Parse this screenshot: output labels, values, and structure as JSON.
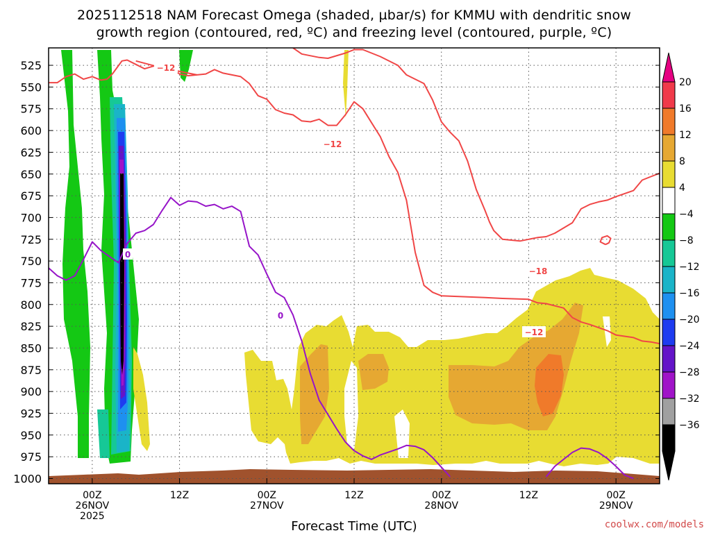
{
  "chart_data": {
    "type": "contour-time-height",
    "title_line1": "2025112518 NAM Forecast Omega (shaded, µbar/s) for KMMU with dendritic snow",
    "title_line2": "growth region (contoured, red, ºC) and freezing level (contoured, purple, ºC)",
    "xlabel": "Forecast Time (UTC)",
    "credit": "coolwx.com/models",
    "y_axis": {
      "unit": "hPa",
      "ticks": [
        525,
        550,
        575,
        600,
        625,
        650,
        675,
        700,
        725,
        750,
        775,
        800,
        825,
        850,
        875,
        900,
        925,
        950,
        975,
        1000
      ],
      "range": [
        505,
        1006
      ],
      "grid": true
    },
    "x_axis": {
      "range_hours": [
        -5,
        65
      ],
      "ticks": [
        {
          "hour": 0,
          "lines": [
            "00Z",
            "26NOV",
            "2025"
          ]
        },
        {
          "hour": 10,
          "lines": [
            "12Z"
          ]
        },
        {
          "hour": 20,
          "lines": [
            "00Z",
            "27NOV"
          ]
        },
        {
          "hour": 30,
          "lines": [
            "12Z"
          ]
        },
        {
          "hour": 40,
          "lines": [
            "00Z",
            "28NOV"
          ]
        },
        {
          "hour": 50,
          "lines": [
            "12Z"
          ]
        },
        {
          "hour": 60,
          "lines": [
            "00Z",
            "29NOV"
          ]
        }
      ],
      "grid": true
    },
    "colorbar": {
      "labels": [
        "20",
        "16",
        "12",
        "8",
        "4",
        "−4",
        "−8",
        "−12",
        "−16",
        "−20",
        "−24",
        "−28",
        "−32",
        "−36"
      ],
      "colors": [
        "#f03a4a",
        "#f07a2a",
        "#e6a832",
        "#e8dc32",
        "#ffffff",
        "#14c814",
        "#16c896",
        "#1ab4c8",
        "#1e90f0",
        "#1e3cf0",
        "#6414c8",
        "#a014c8",
        "#a0a0a0",
        "#000000"
      ],
      "top_arrow_color": "#e60082",
      "bottom_arrow_color": "#000000"
    },
    "contour_labels": {
      "dgz_a": "−12",
      "dgz_b": "−12",
      "dgz_c": "−18",
      "dgz_d": "−12",
      "freeze_a": "0",
      "freeze_b": "0"
    },
    "series": [
      {
        "key": "dgz_top",
        "color": "#f04646",
        "points": [
          [
            -5,
            545
          ],
          [
            -4,
            545
          ],
          [
            -3,
            538
          ],
          [
            -2,
            535
          ],
          [
            -1,
            541
          ],
          [
            0,
            538
          ],
          [
            1,
            542
          ],
          [
            1.7,
            541
          ],
          [
            2.3,
            535
          ],
          [
            3.4,
            520
          ],
          [
            4,
            519
          ],
          [
            5,
            524
          ],
          [
            6,
            529
          ],
          [
            7,
            526
          ],
          [
            8,
            525
          ],
          [
            9,
            527
          ],
          [
            10,
            535
          ],
          [
            11,
            537
          ],
          [
            12,
            536
          ],
          [
            13,
            535
          ],
          [
            14,
            530
          ],
          [
            15,
            534
          ],
          [
            17,
            538
          ],
          [
            18,
            546
          ],
          [
            19,
            560
          ],
          [
            20,
            564
          ],
          [
            21,
            576
          ],
          [
            22,
            580
          ],
          [
            23,
            582
          ],
          [
            24,
            589
          ],
          [
            25,
            590
          ],
          [
            26,
            587
          ],
          [
            27,
            594
          ],
          [
            28,
            594
          ],
          [
            29,
            582
          ],
          [
            30,
            567
          ],
          [
            31,
            575
          ],
          [
            32,
            591
          ],
          [
            33,
            607
          ],
          [
            34,
            630
          ],
          [
            35,
            648
          ],
          [
            36,
            680
          ],
          [
            37,
            740
          ],
          [
            38,
            778
          ],
          [
            39,
            786
          ],
          [
            40,
            790
          ],
          [
            45,
            792
          ],
          [
            47,
            793
          ],
          [
            50,
            794
          ],
          [
            51,
            798
          ],
          [
            52,
            799
          ],
          [
            54,
            804
          ],
          [
            55,
            815
          ],
          [
            56,
            820
          ],
          [
            57,
            823
          ],
          [
            59,
            830
          ],
          [
            60,
            835
          ],
          [
            62,
            838
          ],
          [
            63,
            842
          ],
          [
            64,
            843
          ],
          [
            65,
            845
          ]
        ]
      },
      {
        "key": "dgz_top2",
        "color": "#f04646",
        "points": [
          [
            5,
            520
          ],
          [
            8,
            528
          ],
          [
            12,
            536
          ]
        ]
      },
      {
        "key": "dgz_upper",
        "color": "#f04646",
        "points": [
          [
            23,
            505
          ],
          [
            24,
            512
          ],
          [
            26,
            516
          ],
          [
            27,
            517
          ],
          [
            29,
            511
          ],
          [
            30,
            507
          ],
          [
            31,
            507
          ],
          [
            33,
            515
          ],
          [
            35,
            525
          ],
          [
            36,
            536
          ],
          [
            38,
            546
          ],
          [
            39,
            565
          ],
          [
            40,
            590
          ],
          [
            41,
            602
          ],
          [
            42,
            612
          ],
          [
            43,
            635
          ],
          [
            44,
            668
          ],
          [
            45,
            692
          ],
          [
            45.5,
            705
          ],
          [
            46,
            715
          ],
          [
            46.5,
            720
          ],
          [
            47,
            725
          ],
          [
            48,
            726
          ],
          [
            49,
            727
          ],
          [
            50,
            725
          ],
          [
            51,
            723
          ],
          [
            52,
            722
          ],
          [
            53,
            718
          ],
          [
            54,
            712
          ],
          [
            55,
            706
          ],
          [
            56,
            690
          ],
          [
            57,
            685
          ],
          [
            58,
            682
          ],
          [
            59,
            680
          ],
          [
            60,
            676
          ],
          [
            62,
            669
          ],
          [
            63,
            657
          ],
          [
            64,
            653
          ],
          [
            65,
            649
          ]
        ]
      },
      {
        "key": "dgz_small",
        "color": "#f04646",
        "points": [
          [
            58.8,
            731
          ],
          [
            58.2,
            728
          ],
          [
            58.4,
            723
          ],
          [
            59,
            721
          ],
          [
            59.4,
            724
          ],
          [
            59.2,
            729
          ],
          [
            58.8,
            731
          ]
        ]
      },
      {
        "key": "freeze_main",
        "color": "#9614c8",
        "points": [
          [
            -5,
            758
          ],
          [
            -4,
            767
          ],
          [
            -3,
            772
          ],
          [
            -2,
            767
          ],
          [
            -1,
            748
          ],
          [
            0,
            728
          ],
          [
            1,
            738
          ],
          [
            2,
            745
          ],
          [
            3,
            752
          ],
          [
            4,
            730
          ],
          [
            5,
            718
          ],
          [
            6,
            715
          ],
          [
            7,
            708
          ],
          [
            8,
            692
          ],
          [
            9,
            677
          ],
          [
            10,
            686
          ],
          [
            11,
            681
          ],
          [
            12,
            682
          ],
          [
            13,
            687
          ],
          [
            14,
            685
          ],
          [
            15,
            690
          ],
          [
            16,
            687
          ],
          [
            17,
            693
          ],
          [
            18,
            733
          ],
          [
            19,
            743
          ],
          [
            20,
            765
          ],
          [
            21,
            786
          ],
          [
            22,
            792
          ],
          [
            23,
            812
          ],
          [
            24,
            842
          ],
          [
            25,
            880
          ],
          [
            26,
            910
          ],
          [
            28,
            943
          ],
          [
            29,
            958
          ],
          [
            30,
            968
          ],
          [
            31,
            974
          ],
          [
            32,
            978
          ],
          [
            33,
            973
          ],
          [
            35,
            966
          ],
          [
            36,
            962
          ],
          [
            37,
            963
          ],
          [
            38,
            967
          ],
          [
            39,
            976
          ],
          [
            40,
            987
          ],
          [
            41,
            998
          ]
        ]
      },
      {
        "key": "freeze_east",
        "color": "#9614c8",
        "points": [
          [
            52,
            998
          ],
          [
            53,
            986
          ],
          [
            54,
            978
          ],
          [
            55,
            970
          ],
          [
            56,
            965
          ],
          [
            57,
            966
          ],
          [
            58,
            970
          ],
          [
            59,
            977
          ],
          [
            60,
            986
          ],
          [
            61,
            996
          ],
          [
            62,
            1000
          ]
        ]
      }
    ]
  }
}
